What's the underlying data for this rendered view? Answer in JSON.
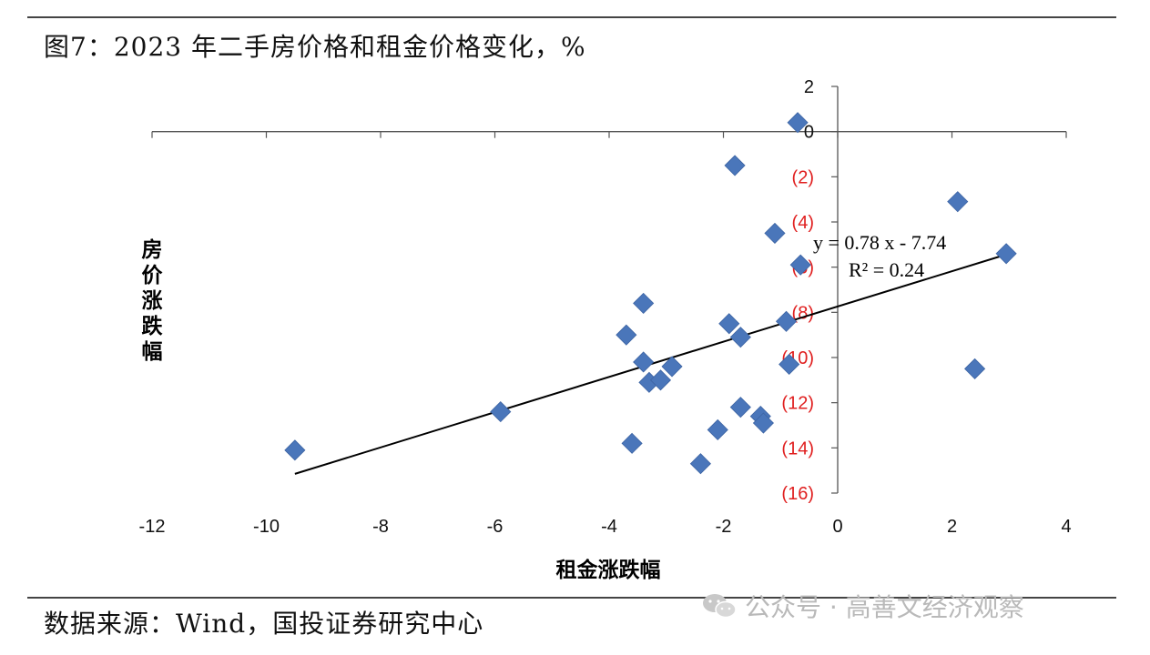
{
  "header": {
    "title": "图7：2023 年二手房价格和租金价格变化，%"
  },
  "footer": {
    "source": "数据来源：Wind，国投证券研究中心",
    "watermark": "公众号 · 高善文经济观察"
  },
  "colors": {
    "marker": "#4A76BA",
    "negative_tick": "#e02020",
    "trendline": "#000000",
    "axis": "#555555"
  },
  "chart_data": {
    "type": "scatter",
    "xlabel": "租金涨跌幅",
    "ylabel": "房价涨跌幅",
    "xlim": [
      -12,
      4
    ],
    "ylim": [
      -16,
      2
    ],
    "x_ticks": [
      -12,
      -10,
      -8,
      -6,
      -4,
      -2,
      0,
      2,
      4
    ],
    "x_tick_labels": [
      "-12",
      "-10",
      "-8",
      "-6",
      "-4",
      "-2",
      "0",
      "2",
      "4"
    ],
    "y_ticks": [
      2,
      0,
      -2,
      -4,
      -6,
      -8,
      -10,
      -12,
      -14,
      -16
    ],
    "y_tick_labels": [
      "2",
      "0",
      "(2)",
      "(4)",
      "(6)",
      "(8)",
      "(10)",
      "(12)",
      "(14)",
      "(16)"
    ],
    "marker": "diamond",
    "grid": false,
    "legend": "none",
    "series": [
      {
        "points": [
          [
            -9.5,
            -14.1
          ],
          [
            -5.9,
            -12.4
          ],
          [
            -3.7,
            -9.0
          ],
          [
            -3.4,
            -7.6
          ],
          [
            -3.4,
            -10.2
          ],
          [
            -3.3,
            -11.1
          ],
          [
            -3.1,
            -11.0
          ],
          [
            -2.9,
            -10.4
          ],
          [
            -3.6,
            -13.8
          ],
          [
            -2.4,
            -14.7
          ],
          [
            -2.1,
            -13.2
          ],
          [
            -1.8,
            -1.5
          ],
          [
            -1.9,
            -8.5
          ],
          [
            -1.7,
            -9.1
          ],
          [
            -1.7,
            -12.2
          ],
          [
            -1.35,
            -12.6
          ],
          [
            -1.3,
            -12.9
          ],
          [
            -1.1,
            -4.5
          ],
          [
            -0.9,
            -8.4
          ],
          [
            -0.85,
            -10.3
          ],
          [
            -0.7,
            0.4
          ],
          [
            -0.65,
            -5.9
          ],
          [
            2.1,
            -3.1
          ],
          [
            2.4,
            -10.5
          ],
          [
            2.95,
            -5.4
          ]
        ]
      }
    ],
    "trendline": {
      "slope": 0.78,
      "intercept": -7.74,
      "x_range": [
        -9.5,
        2.95
      ],
      "equation_label": "y = 0.78 x - 7.74",
      "r2_label": "R² = 0.24"
    }
  }
}
